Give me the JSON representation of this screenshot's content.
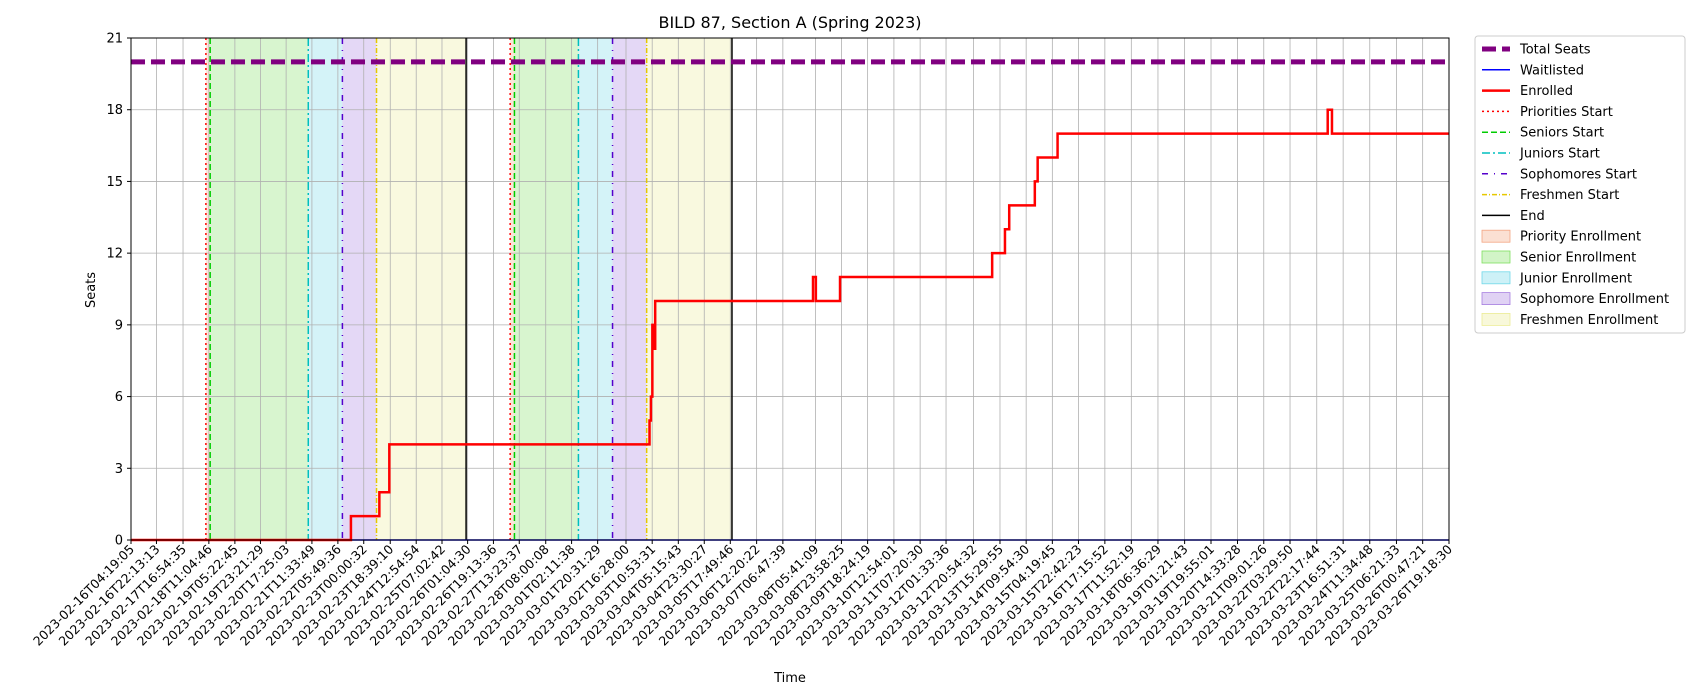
{
  "chart_data": {
    "type": "line",
    "title": "BILD 87, Section A (Spring 2023)",
    "xlabel": "Time",
    "ylabel": "Seats",
    "ylim": [
      0,
      21
    ],
    "xlim": [
      "2023-02-16T04:19:05",
      "2023-03-26T19:18:30"
    ],
    "yticks": [
      0,
      3,
      6,
      9,
      12,
      15,
      18,
      21
    ],
    "xticks": [
      "2023-02-16T04:19:05",
      "2023-02-16T22:13:13",
      "2023-02-17T16:54:35",
      "2023-02-18T11:04:46",
      "2023-02-19T05:22:45",
      "2023-02-19T23:21:29",
      "2023-02-20T17:25:03",
      "2023-02-21T11:33:49",
      "2023-02-22T05:49:36",
      "2023-02-23T00:00:32",
      "2023-02-23T18:39:10",
      "2023-02-24T12:54:54",
      "2023-02-25T07:02:42",
      "2023-02-26T01:04:30",
      "2023-02-26T19:13:36",
      "2023-02-27T13:23:37",
      "2023-02-28T08:00:08",
      "2023-03-01T02:11:38",
      "2023-03-01T20:31:29",
      "2023-03-02T16:28:00",
      "2023-03-03T10:53:31",
      "2023-03-04T05:15:43",
      "2023-03-04T23:30:27",
      "2023-03-05T17:49:46",
      "2023-03-06T12:20:22",
      "2023-03-07T06:47:39",
      "2023-03-08T05:41:09",
      "2023-03-08T23:58:25",
      "2023-03-09T18:24:19",
      "2023-03-10T12:54:01",
      "2023-03-11T07:20:30",
      "2023-03-12T01:33:36",
      "2023-03-12T20:54:32",
      "2023-03-13T15:29:55",
      "2023-03-14T09:54:30",
      "2023-03-15T04:19:45",
      "2023-03-15T22:42:23",
      "2023-03-16T17:15:52",
      "2023-03-17T11:52:19",
      "2023-03-18T06:36:29",
      "2023-03-19T01:21:43",
      "2023-03-19T19:55:01",
      "2023-03-20T14:33:28",
      "2023-03-21T09:01:26",
      "2023-03-22T03:29:50",
      "2023-03-22T22:17:44",
      "2023-03-23T16:51:31",
      "2023-03-24T11:34:48",
      "2023-03-25T06:21:33",
      "2023-03-26T00:47:21",
      "2023-03-26T19:18:30"
    ],
    "grid": true,
    "legend_position": "outside-right",
    "total_seats": 20,
    "colors": {
      "total": "#800080",
      "waitlisted": "#0000ff",
      "enrolled": "#ff0000",
      "priority_fill": "#f4a582",
      "senior_fill": "#7fdf5f",
      "junior_fill": "#70d8e8",
      "sophomore_fill": "#a77fe0",
      "freshmen_fill": "#ecec96"
    },
    "periods": [
      {
        "priorities_start": "2023-02-18T09:00:00",
        "seniors_start": "2023-02-18T12:00:00",
        "juniors_start": "2023-02-21T09:00:00",
        "sophomores_start": "2023-02-22T09:00:00",
        "freshmen_start": "2023-02-23T09:00:00",
        "end": "2023-02-26T00:00:00"
      },
      {
        "priorities_start": "2023-02-27T07:00:00",
        "seniors_start": "2023-02-27T10:00:00",
        "juniors_start": "2023-03-01T07:00:00",
        "sophomores_start": "2023-03-02T07:00:00",
        "freshmen_start": "2023-03-03T07:00:00",
        "end": "2023-03-05T19:00:00"
      }
    ],
    "series": [
      {
        "name": "Total Seats",
        "style": "dashed",
        "points": [
          [
            "2023-02-16T04:19:05",
            20
          ],
          [
            "2023-03-26T19:18:30",
            20
          ]
        ]
      },
      {
        "name": "Waitlisted",
        "style": "solid",
        "points": [
          [
            "2023-02-16T04:19:05",
            0
          ],
          [
            "2023-03-26T19:18:30",
            0
          ]
        ]
      },
      {
        "name": "Enrolled",
        "style": "step",
        "points": [
          [
            "2023-02-16T04:19:05",
            0
          ],
          [
            "2023-02-22T15:00:00",
            0
          ],
          [
            "2023-02-22T15:00:00",
            1
          ],
          [
            "2023-02-23T11:00:00",
            1
          ],
          [
            "2023-02-23T11:00:00",
            2
          ],
          [
            "2023-02-23T18:00:00",
            2
          ],
          [
            "2023-02-23T18:00:00",
            4
          ],
          [
            "2023-03-03T09:00:00",
            4
          ],
          [
            "2023-03-03T09:00:00",
            5
          ],
          [
            "2023-03-03T10:00:00",
            5
          ],
          [
            "2023-03-03T10:00:00",
            6
          ],
          [
            "2023-03-03T11:00:00",
            6
          ],
          [
            "2023-03-03T11:00:00",
            9
          ],
          [
            "2023-03-03T12:00:00",
            9
          ],
          [
            "2023-03-03T12:00:00",
            8
          ],
          [
            "2023-03-03T13:00:00",
            8
          ],
          [
            "2023-03-03T13:00:00",
            10
          ],
          [
            "2023-03-08T04:00:00",
            10
          ],
          [
            "2023-03-08T04:00:00",
            11
          ],
          [
            "2023-03-08T06:00:00",
            11
          ],
          [
            "2023-03-08T06:00:00",
            10
          ],
          [
            "2023-03-08T23:00:00",
            10
          ],
          [
            "2023-03-08T23:00:00",
            11
          ],
          [
            "2023-03-13T10:00:00",
            11
          ],
          [
            "2023-03-13T10:00:00",
            12
          ],
          [
            "2023-03-13T19:00:00",
            12
          ],
          [
            "2023-03-13T19:00:00",
            13
          ],
          [
            "2023-03-13T22:00:00",
            13
          ],
          [
            "2023-03-13T22:00:00",
            14
          ],
          [
            "2023-03-14T16:00:00",
            14
          ],
          [
            "2023-03-14T16:00:00",
            15
          ],
          [
            "2023-03-14T18:00:00",
            15
          ],
          [
            "2023-03-14T18:00:00",
            16
          ],
          [
            "2023-03-15T08:00:00",
            16
          ],
          [
            "2023-03-15T08:00:00",
            17
          ],
          [
            "2023-03-23T06:00:00",
            17
          ],
          [
            "2023-03-23T06:00:00",
            18
          ],
          [
            "2023-03-23T09:00:00",
            18
          ],
          [
            "2023-03-23T09:00:00",
            17
          ],
          [
            "2023-03-26T19:18:30",
            17
          ]
        ]
      }
    ],
    "legend": [
      {
        "label": "Total Seats",
        "kind": "line",
        "color": "#800080",
        "dash": "14,6",
        "width": 5
      },
      {
        "label": "Waitlisted",
        "kind": "line",
        "color": "#0000ff",
        "dash": "",
        "width": 1.5
      },
      {
        "label": "Enrolled",
        "kind": "line",
        "color": "#ff0000",
        "dash": "",
        "width": 2.5
      },
      {
        "label": "Priorities Start",
        "kind": "line",
        "color": "#ff0000",
        "dash": "2,3",
        "width": 1.5
      },
      {
        "label": "Seniors Start",
        "kind": "line",
        "color": "#00cc00",
        "dash": "6,3",
        "width": 1.5
      },
      {
        "label": "Juniors Start",
        "kind": "line",
        "color": "#00bfbf",
        "dash": "8,3,2,3",
        "width": 1.5
      },
      {
        "label": "Sophomores Start",
        "kind": "line",
        "color": "#5500cc",
        "dash": "6,6,1,6",
        "width": 1.5
      },
      {
        "label": "Freshmen Start",
        "kind": "line",
        "color": "#e6c800",
        "dash": "5,2,1,2",
        "width": 1.5
      },
      {
        "label": "End",
        "kind": "line",
        "color": "#000000",
        "dash": "",
        "width": 1.5
      },
      {
        "label": "Priority Enrollment",
        "kind": "patch",
        "color": "#f4a582"
      },
      {
        "label": "Senior Enrollment",
        "kind": "patch",
        "color": "#7fdf5f"
      },
      {
        "label": "Junior Enrollment",
        "kind": "patch",
        "color": "#70d8e8"
      },
      {
        "label": "Sophomore Enrollment",
        "kind": "patch",
        "color": "#a77fe0"
      },
      {
        "label": "Freshmen Enrollment",
        "kind": "patch",
        "color": "#ecec96"
      }
    ]
  }
}
